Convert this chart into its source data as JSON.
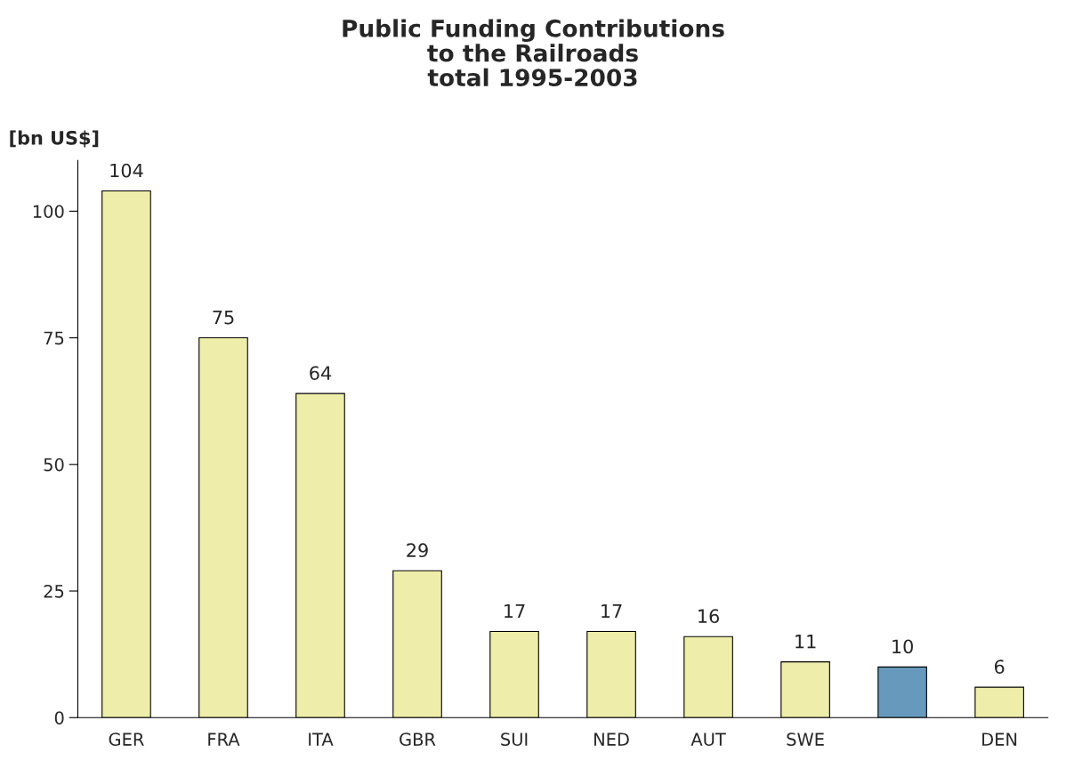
{
  "chart_data": {
    "type": "bar",
    "title": "Public Funding Contributions\nto the Railroads\ntotal 1995-2003",
    "ylabel": "[bn US$]",
    "categories": [
      "GER",
      "FRA",
      "ITA",
      "GBR",
      "SUI",
      "NED",
      "AUT",
      "SWE",
      null,
      "DEN"
    ],
    "values": [
      104,
      75,
      64,
      29,
      17,
      17,
      16,
      11,
      10,
      6
    ],
    "colors": [
      "#eeeeaa",
      "#eeeeaa",
      "#eeeeaa",
      "#eeeeaa",
      "#eeeeaa",
      "#eeeeaa",
      "#eeeeaa",
      "#eeeeaa",
      "#6699bb",
      "#eeeeaa"
    ],
    "ylim": [
      0,
      110
    ],
    "yticks": [
      0,
      25,
      50,
      75,
      100
    ],
    "grid": false,
    "data_labels": true
  }
}
